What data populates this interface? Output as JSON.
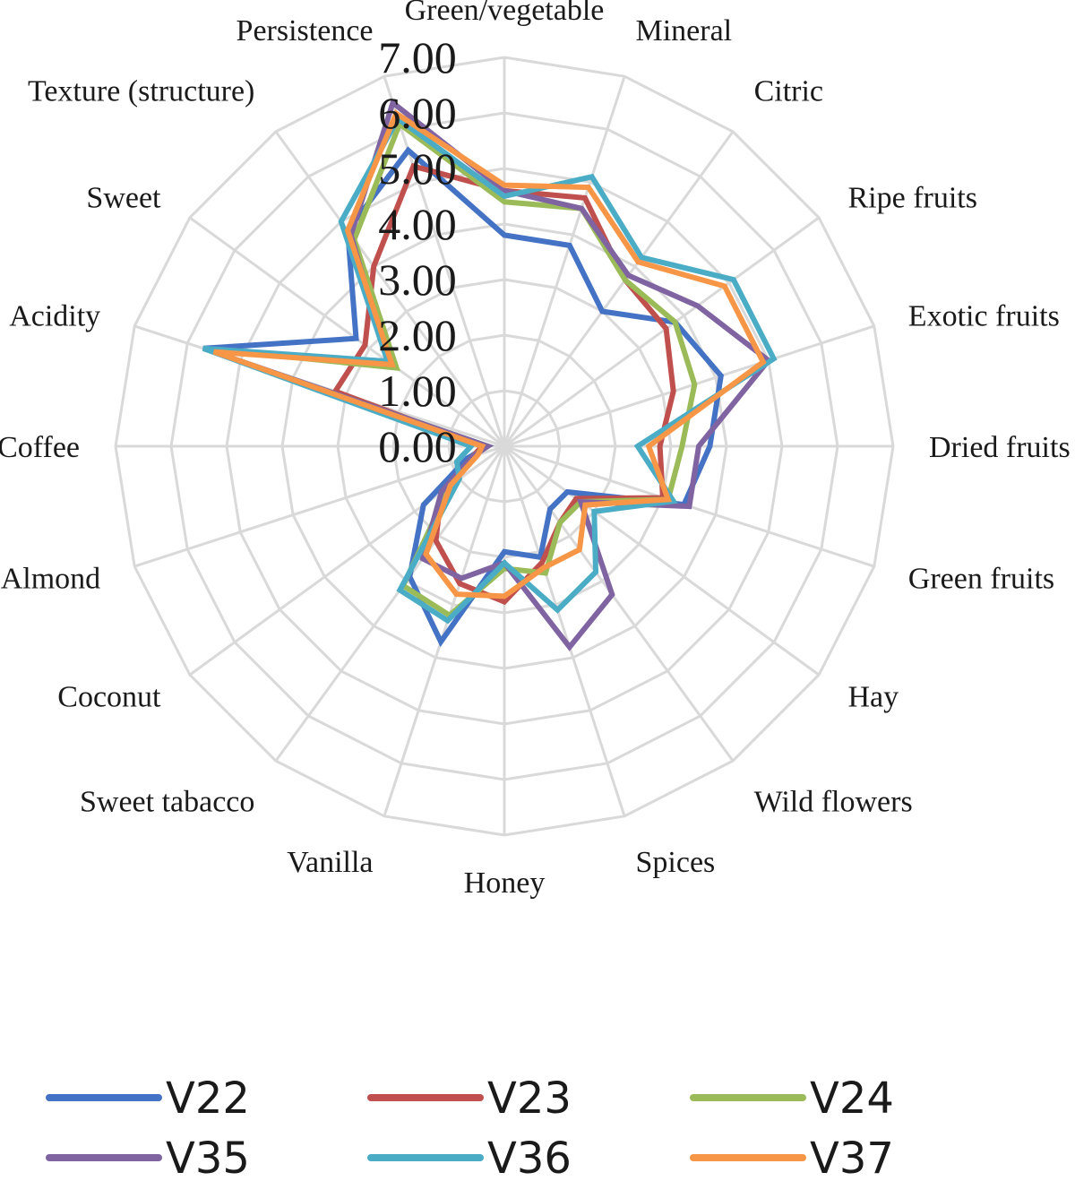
{
  "chart_data": {
    "type": "radar",
    "title": "",
    "categories": [
      "Green/vegetable",
      "Mineral",
      "Citric",
      "Ripe fruits",
      "Exotic fruits",
      "Dried fruits",
      "Green fruits",
      "Hay",
      "Wild flowers",
      "Spices",
      "Honey",
      "Vanilla",
      "Sweet tabacco",
      "Coconut",
      "Almond",
      "Coffee",
      "Acidity",
      "Sweet",
      "Texture (structure)",
      "Persistence"
    ],
    "ticks": [
      "0.00",
      "1.00",
      "2.00",
      "3.00",
      "4.00",
      "5.00",
      "6.00",
      "7.00"
    ],
    "rlim": [
      0,
      7
    ],
    "grid": true,
    "legend_position": "bottom",
    "series": [
      {
        "name": "V22",
        "color": "#4472C4",
        "values": [
          3.8,
          3.8,
          3.0,
          3.8,
          4.1,
          3.7,
          3.4,
          1.4,
          1.4,
          2.1,
          1.9,
          3.7,
          2.9,
          1.8,
          0.7,
          0.3,
          5.7,
          3.3,
          4.8,
          5.6
        ]
      },
      {
        "name": "V23",
        "color": "#C0504D",
        "values": [
          4.6,
          4.7,
          3.7,
          3.6,
          3.2,
          2.8,
          3.0,
          1.6,
          1.7,
          2.2,
          2.8,
          2.6,
          2.1,
          1.4,
          0.6,
          0.4,
          3.2,
          3.1,
          4.0,
          5.3
        ]
      },
      {
        "name": "V24",
        "color": "#9BBB59",
        "values": [
          4.4,
          4.5,
          3.7,
          3.8,
          3.6,
          3.2,
          3.1,
          1.7,
          1.7,
          2.4,
          2.2,
          3.2,
          3.1,
          1.2,
          0.6,
          0.3,
          5.7,
          2.4,
          4.6,
          6.1
        ]
      },
      {
        "name": "V35",
        "color": "#8064A2",
        "values": [
          4.6,
          4.5,
          3.8,
          4.3,
          5.0,
          3.5,
          3.5,
          1.7,
          3.3,
          3.8,
          2.1,
          2.5,
          2.5,
          1.4,
          0.6,
          0.3,
          5.6,
          2.6,
          4.7,
          6.5
        ]
      },
      {
        "name": "V36",
        "color": "#4BACC6",
        "values": [
          4.5,
          5.1,
          4.2,
          5.1,
          5.1,
          2.4,
          3.2,
          2.0,
          2.8,
          3.1,
          2.1,
          3.3,
          3.2,
          1.0,
          0.9,
          0.6,
          5.7,
          2.6,
          5.0,
          6.2
        ]
      },
      {
        "name": "V37",
        "color": "#F79646",
        "values": [
          4.7,
          4.9,
          4.1,
          4.9,
          4.9,
          2.6,
          3.1,
          1.8,
          2.3,
          2.3,
          2.7,
          2.8,
          2.4,
          1.2,
          0.5,
          0.4,
          5.5,
          2.5,
          4.8,
          6.3
        ]
      }
    ]
  }
}
